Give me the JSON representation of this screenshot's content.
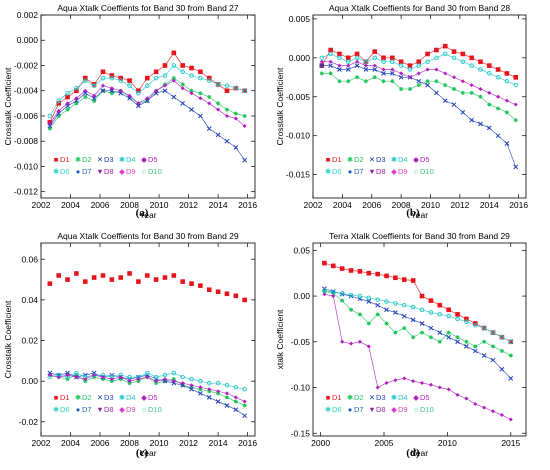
{
  "chart_data": [
    {
      "type": "line",
      "panel": "a",
      "caption": "(a)",
      "title": "Aqua Xtalk Coeffients for Band 30 from Band 27",
      "xlabel": "Year",
      "ylabel": "Crosstalk Coefficient",
      "xlim": [
        2002,
        2016.5
      ],
      "ylim": [
        -0.0125,
        0.002
      ],
      "xticks": [
        "2002",
        "2004",
        "2006",
        "2008",
        "2010",
        "2012",
        "2014",
        "2016"
      ],
      "xtick_values": [
        2002,
        2004,
        2006,
        2008,
        2010,
        2012,
        2014,
        2016
      ],
      "yticks": [
        "-0.012",
        "-0.010",
        "-0.008",
        "-0.006",
        "-0.004",
        "-0.002",
        "0.000",
        "0.002"
      ],
      "ytick_values": [
        -0.012,
        -0.01,
        -0.008,
        -0.006,
        -0.004,
        -0.002,
        0.0,
        0.002
      ],
      "legend_location": "lower-left",
      "legend_rows": [
        [
          "D1",
          "D2",
          "D3",
          "D4",
          "D5"
        ],
        [
          "D6",
          "D7",
          "D8",
          "D9",
          "D10"
        ]
      ],
      "series_x": [
        2002.6,
        2003.2,
        2003.8,
        2004.4,
        2005.0,
        2005.6,
        2006.2,
        2006.8,
        2007.4,
        2008.0,
        2008.6,
        2009.2,
        2009.8,
        2010.4,
        2011.0,
        2011.6,
        2012.2,
        2012.8,
        2013.4,
        2014.0,
        2014.6,
        2015.2,
        2015.8
      ],
      "series": [
        {
          "name": "D1",
          "values": [
            -0.0065,
            -0.005,
            -0.0045,
            -0.004,
            -0.003,
            -0.0035,
            -0.0025,
            -0.0028,
            -0.003,
            -0.0032,
            -0.004,
            -0.003,
            -0.0025,
            -0.002,
            -0.001,
            -0.002,
            -0.0022,
            -0.0025,
            -0.003,
            -0.0035,
            -0.004,
            -0.0038,
            -0.004
          ]
        },
        {
          "name": "D2",
          "values": [
            -0.007,
            -0.006,
            -0.0055,
            -0.005,
            -0.0045,
            -0.0048,
            -0.004,
            -0.0042,
            -0.004,
            -0.0045,
            -0.005,
            -0.0048,
            -0.004,
            -0.0035,
            -0.003,
            -0.0035,
            -0.004,
            -0.0042,
            -0.0045,
            -0.005,
            -0.0055,
            -0.0058,
            -0.006
          ]
        },
        {
          "name": "D3",
          "values": [
            -0.0068,
            -0.0058,
            -0.0052,
            -0.0048,
            -0.0042,
            -0.0046,
            -0.004,
            -0.004,
            -0.0042,
            -0.0046,
            -0.0052,
            -0.0048,
            -0.0042,
            -0.004,
            -0.0045,
            -0.005,
            -0.0055,
            -0.006,
            -0.007,
            -0.0075,
            -0.008,
            -0.0085,
            -0.0095
          ]
        },
        {
          "name": "D4",
          "values": [
            -0.006,
            -0.0048,
            -0.0042,
            -0.0038,
            -0.0032,
            -0.0036,
            -0.003,
            -0.003,
            -0.0032,
            -0.0036,
            -0.0042,
            -0.0036,
            -0.003,
            -0.0028,
            -0.002,
            -0.0025,
            -0.0028,
            -0.003,
            -0.0032,
            -0.0035,
            -0.0036,
            -0.0038,
            -0.004
          ]
        },
        {
          "name": "D5",
          "values": [
            -0.0066,
            -0.0056,
            -0.005,
            -0.0046,
            -0.004,
            -0.0044,
            -0.0036,
            -0.0038,
            -0.004,
            -0.0044,
            -0.005,
            -0.0046,
            -0.004,
            -0.0036,
            -0.0032,
            -0.0038,
            -0.0042,
            -0.0046,
            -0.005,
            -0.0055,
            -0.006,
            -0.0062,
            -0.0068
          ]
        }
      ]
    },
    {
      "type": "line",
      "panel": "b",
      "caption": "(b)",
      "title": "Aqua Xtalk Coeffients for Band 30 from Band 28",
      "xlabel": "Year",
      "ylabel": "Crosstalk Coefficient",
      "xlim": [
        2002,
        2016.5
      ],
      "ylim": [
        -0.018,
        0.0055
      ],
      "xticks": [
        "2002",
        "2004",
        "2006",
        "2008",
        "2010",
        "2012",
        "2014",
        "2016"
      ],
      "xtick_values": [
        2002,
        2004,
        2006,
        2008,
        2010,
        2012,
        2014,
        2016
      ],
      "yticks": [
        "-0.015",
        "-0.010",
        "-0.005",
        "0.000",
        "0.005"
      ],
      "ytick_values": [
        -0.015,
        -0.01,
        -0.005,
        0.0,
        0.005
      ],
      "legend_location": "lower-left",
      "legend_rows": [
        [
          "D1",
          "D2",
          "D3",
          "D4",
          "D5"
        ],
        [
          "D6",
          "D7",
          "D8",
          "D9",
          "D10"
        ]
      ],
      "series_x": [
        2002.6,
        2003.2,
        2003.8,
        2004.4,
        2005.0,
        2005.6,
        2006.2,
        2006.8,
        2007.4,
        2008.0,
        2008.6,
        2009.2,
        2009.8,
        2010.4,
        2011.0,
        2011.6,
        2012.2,
        2012.8,
        2013.4,
        2014.0,
        2014.6,
        2015.2,
        2015.8
      ],
      "series": [
        {
          "name": "D1",
          "values": [
            -0.001,
            0.001,
            0.0005,
            0.0,
            0.0005,
            -0.0005,
            0.0008,
            0.0,
            0.0,
            -0.0005,
            -0.001,
            -0.0005,
            0.0005,
            0.001,
            0.0015,
            0.0008,
            0.0005,
            0.0,
            -0.0005,
            -0.001,
            -0.0015,
            -0.002,
            -0.0025
          ]
        },
        {
          "name": "D2",
          "values": [
            -0.002,
            -0.002,
            -0.003,
            -0.003,
            -0.0025,
            -0.003,
            -0.0025,
            -0.003,
            -0.003,
            -0.004,
            -0.004,
            -0.0035,
            -0.003,
            -0.003,
            -0.0035,
            -0.004,
            -0.0045,
            -0.0045,
            -0.005,
            -0.006,
            -0.0065,
            -0.007,
            -0.008
          ]
        },
        {
          "name": "D3",
          "values": [
            -0.001,
            -0.001,
            -0.0015,
            -0.0015,
            -0.001,
            -0.0015,
            -0.0015,
            -0.002,
            -0.002,
            -0.0025,
            -0.0025,
            -0.003,
            -0.0035,
            -0.0045,
            -0.0055,
            -0.006,
            -0.007,
            -0.008,
            -0.0085,
            -0.009,
            -0.01,
            -0.011,
            -0.014
          ]
        },
        {
          "name": "D4",
          "values": [
            0.0,
            0.0005,
            0.0,
            -0.0005,
            0.0,
            -0.0005,
            0.0,
            -0.0005,
            -0.0005,
            -0.001,
            -0.0015,
            -0.001,
            -0.0005,
            0.0,
            0.0005,
            0.0,
            -0.0005,
            -0.001,
            -0.0015,
            -0.002,
            -0.0025,
            -0.003,
            -0.0035
          ]
        },
        {
          "name": "D5",
          "values": [
            -0.0005,
            -0.0005,
            -0.001,
            -0.001,
            -0.0005,
            -0.001,
            -0.001,
            -0.0015,
            -0.0015,
            -0.002,
            -0.0025,
            -0.002,
            -0.0015,
            -0.0015,
            -0.002,
            -0.0025,
            -0.003,
            -0.0035,
            -0.004,
            -0.0045,
            -0.005,
            -0.0055,
            -0.006
          ]
        }
      ]
    },
    {
      "type": "scatter",
      "panel": "c",
      "caption": "(c)",
      "title": "Aqua Xtalk Coeffients for Band 30 from Band 29",
      "xlabel": "Year",
      "ylabel": "Crosstalk Coefficient",
      "xlim": [
        2002,
        2016.5
      ],
      "ylim": [
        -0.027,
        0.068
      ],
      "xticks": [
        "2002",
        "2004",
        "2006",
        "2008",
        "2010",
        "2012",
        "2014",
        "2016"
      ],
      "xtick_values": [
        2002,
        2004,
        2006,
        2008,
        2010,
        2012,
        2014,
        2016
      ],
      "yticks": [
        "-0.02",
        "0.00",
        "0.02",
        "0.04",
        "0.06"
      ],
      "ytick_values": [
        -0.02,
        0.0,
        0.02,
        0.04,
        0.06
      ],
      "legend_location": "lower-left",
      "legend_rows": [
        [
          "D1",
          "D2",
          "D3",
          "D4",
          "D5"
        ],
        [
          "D6",
          "D7",
          "D8",
          "D9",
          "D10"
        ]
      ],
      "series_x": [
        2002.6,
        2003.2,
        2003.8,
        2004.4,
        2005.0,
        2005.6,
        2006.2,
        2006.8,
        2007.4,
        2008.0,
        2008.6,
        2009.2,
        2009.8,
        2010.4,
        2011.0,
        2011.6,
        2012.2,
        2012.8,
        2013.4,
        2014.0,
        2014.6,
        2015.2,
        2015.8
      ],
      "series": [
        {
          "name": "D1",
          "values": [
            0.048,
            0.052,
            0.05,
            0.053,
            0.049,
            0.051,
            0.052,
            0.05,
            0.051,
            0.053,
            0.049,
            0.052,
            0.05,
            0.051,
            0.052,
            0.049,
            0.048,
            0.047,
            0.045,
            0.044,
            0.043,
            0.042,
            0.04
          ]
        },
        {
          "name": "D2",
          "values": [
            0.003,
            0.002,
            0.001,
            0.003,
            0.0,
            0.002,
            0.001,
            0.0,
            0.001,
            -0.001,
            0.0,
            0.002,
            -0.001,
            0.0,
            0.001,
            -0.002,
            -0.003,
            -0.004,
            -0.005,
            -0.006,
            -0.008,
            -0.01,
            -0.012
          ]
        },
        {
          "name": "D3",
          "values": [
            0.004,
            0.003,
            0.004,
            0.002,
            0.003,
            0.004,
            0.002,
            0.003,
            0.002,
            0.001,
            0.002,
            0.003,
            0.001,
            0.0,
            -0.001,
            -0.002,
            -0.004,
            -0.006,
            -0.008,
            -0.01,
            -0.012,
            -0.014,
            -0.017
          ]
        },
        {
          "name": "D4",
          "values": [
            0.002,
            0.003,
            0.002,
            0.004,
            0.002,
            0.003,
            0.003,
            0.002,
            0.003,
            0.002,
            0.002,
            0.004,
            0.002,
            0.003,
            0.004,
            0.002,
            0.001,
            0.0,
            -0.001,
            -0.001,
            -0.002,
            -0.003,
            -0.004
          ]
        },
        {
          "name": "D5",
          "values": [
            0.003,
            0.002,
            0.003,
            0.002,
            0.001,
            0.003,
            0.002,
            0.001,
            0.002,
            0.0,
            0.001,
            0.002,
            0.0,
            0.001,
            0.0,
            -0.001,
            -0.002,
            -0.003,
            -0.004,
            -0.005,
            -0.006,
            -0.008,
            -0.01
          ]
        }
      ]
    },
    {
      "type": "scatter",
      "panel": "d",
      "caption": "(d)",
      "title": "Terra Xtalk Coeffients for Band 30 from Band 29",
      "xlabel": "Year",
      "ylabel": "xtalk Coefficient",
      "xlim": [
        1999.4,
        2016.2
      ],
      "ylim": [
        -0.153,
        0.058
      ],
      "xticks": [
        "2000",
        "2005",
        "2010",
        "2015"
      ],
      "xtick_values": [
        2000,
        2005,
        2010,
        2015
      ],
      "yticks": [
        "-0.15",
        "-0.10",
        "-0.05",
        "0.00",
        "0.05"
      ],
      "ytick_values": [
        -0.15,
        -0.1,
        -0.05,
        0.0,
        0.05
      ],
      "legend_location": "lower-left",
      "legend_rows": [
        [
          "D1",
          "D2",
          "D3",
          "D4",
          "D5"
        ],
        [
          "D6",
          "D7",
          "D8",
          "D9",
          "D10"
        ]
      ],
      "series_x": [
        2000.3,
        2001.0,
        2001.7,
        2002.4,
        2003.1,
        2003.8,
        2004.5,
        2005.2,
        2005.9,
        2006.6,
        2007.3,
        2008.0,
        2008.7,
        2009.4,
        2010.1,
        2010.8,
        2011.5,
        2012.2,
        2012.9,
        2013.6,
        2014.3,
        2015.0
      ],
      "series": [
        {
          "name": "D1",
          "values": [
            0.036,
            0.033,
            0.03,
            0.028,
            0.027,
            0.025,
            0.024,
            0.022,
            0.02,
            0.018,
            0.017,
            0.0,
            -0.005,
            -0.01,
            -0.015,
            -0.02,
            -0.025,
            -0.03,
            -0.035,
            -0.04,
            -0.045,
            -0.05
          ]
        },
        {
          "name": "D2",
          "values": [
            0.005,
            0.003,
            -0.005,
            -0.015,
            -0.02,
            -0.03,
            -0.02,
            -0.03,
            -0.04,
            -0.035,
            -0.045,
            -0.04,
            -0.045,
            -0.05,
            -0.04,
            -0.045,
            -0.05,
            -0.055,
            -0.05,
            -0.055,
            -0.06,
            -0.065
          ]
        },
        {
          "name": "D3",
          "values": [
            0.008,
            0.005,
            0.002,
            0.0,
            -0.003,
            -0.006,
            -0.01,
            -0.015,
            -0.018,
            -0.022,
            -0.026,
            -0.03,
            -0.035,
            -0.04,
            -0.045,
            -0.05,
            -0.055,
            -0.06,
            -0.065,
            -0.07,
            -0.08,
            -0.09
          ]
        },
        {
          "name": "D4",
          "values": [
            0.006,
            0.004,
            0.003,
            0.001,
            0.0,
            -0.002,
            -0.004,
            -0.006,
            -0.008,
            -0.01,
            -0.012,
            -0.015,
            -0.018,
            -0.02,
            -0.022,
            -0.025,
            -0.028,
            -0.032,
            -0.035,
            -0.04,
            -0.045,
            -0.05
          ]
        },
        {
          "name": "D5",
          "values": [
            0.002,
            0.0,
            -0.05,
            -0.052,
            -0.05,
            -0.055,
            -0.1,
            -0.095,
            -0.092,
            -0.09,
            -0.093,
            -0.095,
            -0.097,
            -0.1,
            -0.102,
            -0.108,
            -0.112,
            -0.118,
            -0.122,
            -0.126,
            -0.13,
            -0.135
          ]
        }
      ]
    }
  ],
  "colors": {
    "D1": "#e8141c",
    "D2": "#22c55e",
    "D3": "#1f3fbf",
    "D4": "#22c7c7",
    "D5": "#b01fbf",
    "D6": "#2fd7c0",
    "D7": "#1e5ec9",
    "D8": "#9a1fa8",
    "D9": "#e040c8",
    "D10": "#3ec98a"
  },
  "legend_markers": {
    "D1": "■",
    "D2": "✱",
    "D3": "✕",
    "D4": "✱",
    "D5": "◆",
    "D6": "✱",
    "D7": "●",
    "D8": "▼",
    "D9": "◆",
    "D10": "○"
  }
}
